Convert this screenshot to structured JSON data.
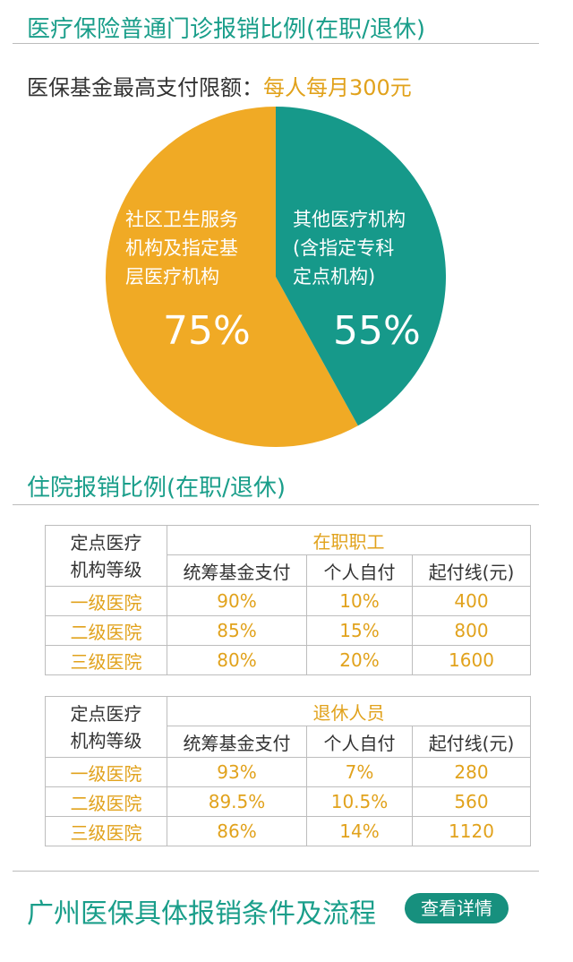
{
  "section1": {
    "title": "医疗保险普通门诊报销比例(在职/退休)",
    "limit_label": "医保基金最高支付限额：",
    "limit_value": "每人每月300元"
  },
  "pie": {
    "left_label_lines": [
      "社区卫生服务",
      "机构及指定基",
      "层医疗机构"
    ],
    "left_percent": "75%",
    "right_label_lines": [
      "其他医疗机构",
      "(含指定专科",
      "定点机构)"
    ],
    "right_percent": "55%",
    "colors": {
      "orange": "#f0aa25",
      "teal": "#16998a"
    }
  },
  "section2": {
    "title": "住院报销比例(在职/退休)"
  },
  "tables": [
    {
      "level_header_lines": [
        "定点医疗",
        "机构等级"
      ],
      "group": "在职职工",
      "columns": [
        "统筹基金支付",
        "个人自付",
        "起付线(元)"
      ],
      "rows": [
        {
          "level": "一级医院",
          "fund": "90%",
          "self": "10%",
          "threshold": "400"
        },
        {
          "level": "二级医院",
          "fund": "85%",
          "self": "15%",
          "threshold": "800"
        },
        {
          "level": "三级医院",
          "fund": "80%",
          "self": "20%",
          "threshold": "1600"
        }
      ]
    },
    {
      "level_header_lines": [
        "定点医疗",
        "机构等级"
      ],
      "group": "退休人员",
      "columns": [
        "统筹基金支付",
        "个人自付",
        "起付线(元)"
      ],
      "rows": [
        {
          "level": "一级医院",
          "fund": "93%",
          "self": "7%",
          "threshold": "280"
        },
        {
          "level": "二级医院",
          "fund": "89.5%",
          "self": "10.5%",
          "threshold": "560"
        },
        {
          "level": "三级医院",
          "fund": "86%",
          "self": "14%",
          "threshold": "1120"
        }
      ]
    }
  ],
  "footer": {
    "title": "广州医保具体报销条件及流程",
    "button_label": "查看详情"
  },
  "colors": {
    "accent_teal": "#1a9e8a",
    "accent_orange": "#e1a21c",
    "button_bg": "#17907e"
  }
}
